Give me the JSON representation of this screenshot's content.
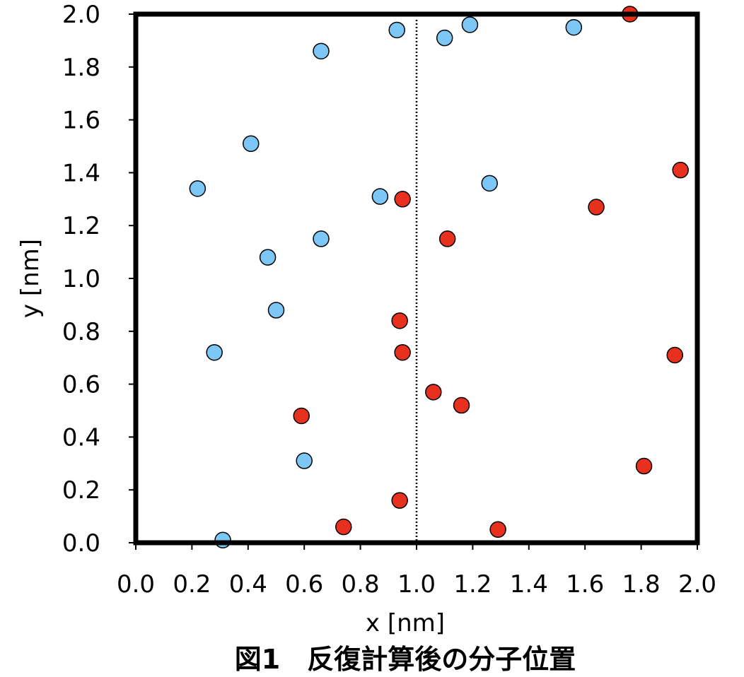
{
  "chart_data": {
    "type": "scatter",
    "caption": "図1　反復計算後の分子位置",
    "xlabel": "x [nm]",
    "ylabel": "y [nm]",
    "xlim": [
      0.0,
      2.0
    ],
    "ylim": [
      0.0,
      2.0
    ],
    "x_ticks": [
      "0.0",
      "0.2",
      "0.4",
      "0.6",
      "0.8",
      "1.0",
      "1.2",
      "1.4",
      "1.6",
      "1.8",
      "2.0"
    ],
    "y_ticks": [
      "0.0",
      "0.2",
      "0.4",
      "0.6",
      "0.8",
      "1.0",
      "1.2",
      "1.4",
      "1.6",
      "1.8",
      "2.0"
    ],
    "grid": false,
    "reference_line": {
      "x": 1.0,
      "style": "dotted"
    },
    "series": [
      {
        "color": "#7cc7f5",
        "points": [
          [
            0.93,
            1.94
          ],
          [
            1.1,
            1.91
          ],
          [
            1.19,
            1.96
          ],
          [
            1.56,
            1.95
          ],
          [
            0.66,
            1.86
          ],
          [
            0.41,
            1.51
          ],
          [
            0.22,
            1.34
          ],
          [
            0.87,
            1.31
          ],
          [
            1.26,
            1.36
          ],
          [
            0.66,
            1.15
          ],
          [
            0.47,
            1.08
          ],
          [
            0.5,
            0.88
          ],
          [
            0.28,
            0.72
          ],
          [
            0.6,
            0.31
          ],
          [
            0.31,
            0.01
          ]
        ]
      },
      {
        "color": "#e8301f",
        "points": [
          [
            1.76,
            2.0
          ],
          [
            1.94,
            1.41
          ],
          [
            0.95,
            1.3
          ],
          [
            1.64,
            1.27
          ],
          [
            1.11,
            1.15
          ],
          [
            0.94,
            0.84
          ],
          [
            0.95,
            0.72
          ],
          [
            1.92,
            0.71
          ],
          [
            1.06,
            0.57
          ],
          [
            1.16,
            0.52
          ],
          [
            0.59,
            0.48
          ],
          [
            1.81,
            0.29
          ],
          [
            0.94,
            0.16
          ],
          [
            0.74,
            0.06
          ],
          [
            1.29,
            0.05
          ]
        ]
      }
    ]
  }
}
